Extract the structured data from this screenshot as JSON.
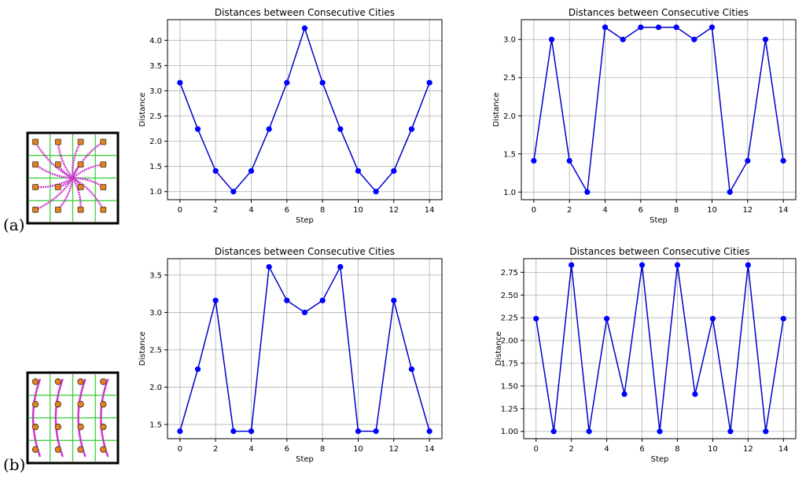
{
  "labels": {
    "a": "(a)",
    "b": "(b)"
  },
  "colors": {
    "line": "#0000cc",
    "marker": "#0000ff",
    "grid": "#b0b0b0",
    "path": "#cc33cc",
    "city": "#e8801a",
    "cell_grid": "#33cc33"
  },
  "chart_data": [
    {
      "type": "line",
      "title": "Distances between Consecutive Cities",
      "xlabel": "Step",
      "ylabel": "Distance",
      "xlim": [
        -0.7,
        14.7
      ],
      "ylim": [
        0.84,
        4.41
      ],
      "xticks": [
        0,
        2,
        4,
        6,
        8,
        10,
        12,
        14
      ],
      "yticks": [
        1.0,
        1.5,
        2.0,
        2.5,
        3.0,
        3.5,
        4.0
      ],
      "ytick_labels": [
        "1.0",
        "1.5",
        "2.0",
        "2.5",
        "3.0",
        "3.5",
        "4.0"
      ],
      "grid": true,
      "x": [
        0,
        1,
        2,
        3,
        4,
        5,
        6,
        7,
        8,
        9,
        10,
        11,
        12,
        13,
        14
      ],
      "values": [
        3.16,
        2.24,
        1.41,
        1.0,
        1.41,
        2.24,
        3.16,
        4.24,
        3.16,
        2.24,
        1.41,
        1.0,
        1.41,
        2.24,
        3.16
      ]
    },
    {
      "type": "line",
      "title": "Distances between Consecutive Cities",
      "xlabel": "Step",
      "ylabel": "Distance",
      "xlim": [
        -0.7,
        14.7
      ],
      "ylim": [
        0.9,
        3.26
      ],
      "xticks": [
        0,
        2,
        4,
        6,
        8,
        10,
        12,
        14
      ],
      "yticks": [
        1.0,
        1.5,
        2.0,
        2.5,
        3.0
      ],
      "ytick_labels": [
        "1.0",
        "1.5",
        "2.0",
        "2.5",
        "3.0"
      ],
      "grid": true,
      "x": [
        0,
        1,
        2,
        3,
        4,
        5,
        6,
        7,
        8,
        9,
        10,
        11,
        12,
        13,
        14
      ],
      "values": [
        1.41,
        3.0,
        1.41,
        1.0,
        3.16,
        3.0,
        3.16,
        3.16,
        3.16,
        3.0,
        3.16,
        1.0,
        1.41,
        3.0,
        1.41
      ]
    },
    {
      "type": "line",
      "title": "Distances between Consecutive Cities",
      "xlabel": "Step",
      "ylabel": "Distance",
      "xlim": [
        -0.7,
        14.7
      ],
      "ylim": [
        1.31,
        3.72
      ],
      "xticks": [
        0,
        2,
        4,
        6,
        8,
        10,
        12,
        14
      ],
      "yticks": [
        1.5,
        2.0,
        2.5,
        3.0,
        3.5
      ],
      "ytick_labels": [
        "1.5",
        "2.0",
        "2.5",
        "3.0",
        "3.5"
      ],
      "grid": true,
      "x": [
        0,
        1,
        2,
        3,
        4,
        5,
        6,
        7,
        8,
        9,
        10,
        11,
        12,
        13,
        14
      ],
      "values": [
        1.41,
        2.24,
        3.16,
        1.41,
        1.41,
        3.61,
        3.16,
        3.0,
        3.16,
        3.61,
        1.41,
        1.41,
        3.16,
        2.24,
        1.41
      ]
    },
    {
      "type": "line",
      "title": "Distances between Consecutive Cities",
      "xlabel": "Step",
      "ylabel": "Distance",
      "xlim": [
        -0.7,
        14.7
      ],
      "ylim": [
        0.92,
        2.9
      ],
      "xticks": [
        0,
        2,
        4,
        6,
        8,
        10,
        12,
        14
      ],
      "yticks": [
        1.0,
        1.25,
        1.5,
        1.75,
        2.0,
        2.25,
        2.5,
        2.75
      ],
      "ytick_labels": [
        "1.00",
        "1.25",
        "1.50",
        "1.75",
        "2.00",
        "2.25",
        "2.50",
        "2.75"
      ],
      "grid": true,
      "x": [
        0,
        1,
        2,
        3,
        4,
        5,
        6,
        7,
        8,
        9,
        10,
        11,
        12,
        13,
        14
      ],
      "values": [
        2.24,
        1.0,
        2.83,
        1.0,
        2.24,
        1.41,
        2.83,
        1.0,
        2.83,
        1.41,
        2.24,
        1.0,
        2.83,
        1.0,
        2.24
      ]
    }
  ]
}
